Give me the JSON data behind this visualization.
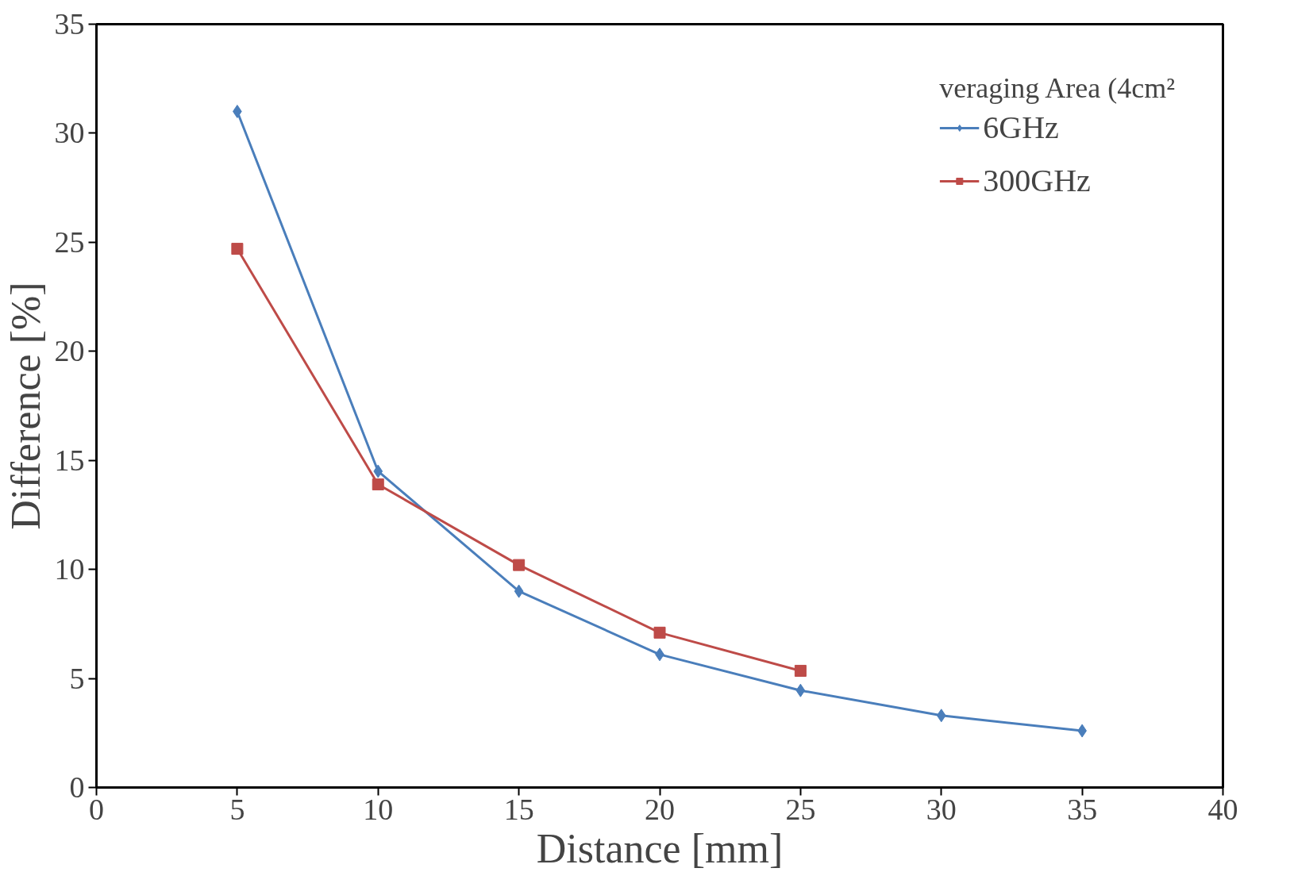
{
  "chart_data": {
    "type": "line",
    "xlabel": "Distance [mm]",
    "ylabel": "Difference [%]",
    "legend_title": "veraging Area (4cm²",
    "x": [
      5,
      10,
      15,
      20,
      25,
      30,
      35
    ],
    "series": [
      {
        "name": "6GHz",
        "color": "#4a7ebb",
        "marker": "diamond",
        "values": [
          31.0,
          14.5,
          9.0,
          6.1,
          4.45,
          3.3,
          2.6
        ]
      },
      {
        "name": "300GHz",
        "color": "#be4b48",
        "marker": "square",
        "values": [
          24.7,
          13.9,
          10.2,
          7.1,
          5.35,
          null,
          null
        ]
      }
    ],
    "xlim": [
      0,
      40
    ],
    "xticks": [
      0,
      5,
      10,
      15,
      20,
      25,
      30,
      35,
      40
    ],
    "ylim": [
      0,
      35
    ],
    "yticks": [
      0,
      5,
      10,
      15,
      20,
      25,
      30,
      35
    ],
    "grid": false,
    "legend": "top right",
    "line_style": "solid"
  }
}
